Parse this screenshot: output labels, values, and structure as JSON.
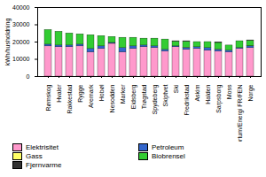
{
  "chart_data": {
    "type": "bar",
    "stacked": true,
    "grid": false,
    "legend": "bottom",
    "y_label": "kWh/husholdning",
    "categories": [
      "Rømskog",
      "Hvaler",
      "Rakkestad",
      "Rygge",
      "Aremark",
      "Hobøl",
      "Nesodden",
      "Marker",
      "Eidsberg",
      "Trøgstad",
      "Spydeberg",
      "Skiptvet",
      "Ski",
      "Fredrikstad",
      "Askim",
      "Halden",
      "Sarpsborg",
      "Moss",
      "Fortum/Energi FR/FEN",
      "Norge"
    ],
    "ylim": [
      0,
      40000
    ],
    "yticks": [
      0,
      10000,
      20000,
      30000,
      40000
    ],
    "series": [
      {
        "name": "Elektrisitet",
        "color": "#ff99cc",
        "values": [
          17500,
          17000,
          17000,
          17500,
          14000,
          16000,
          19000,
          14000,
          16000,
          17000,
          16500,
          14500,
          17000,
          15500,
          16000,
          15000,
          14500,
          14000,
          16000,
          16500
        ]
      },
      {
        "name": "Petroleum",
        "color": "#3366cc",
        "values": [
          1000,
          1000,
          1000,
          1000,
          2000,
          1500,
          500,
          2500,
          1500,
          1000,
          1000,
          1000,
          500,
          1000,
          1000,
          1500,
          1000,
          1000,
          500,
          1000
        ]
      },
      {
        "name": "Gass",
        "color": "#ffff66",
        "values": [
          0,
          0,
          0,
          0,
          0,
          0,
          0,
          0,
          0,
          0,
          0,
          0,
          0,
          200,
          0,
          0,
          200,
          0,
          0,
          100
        ]
      },
      {
        "name": "Biobrensel",
        "color": "#33cc33",
        "values": [
          8500,
          8000,
          7000,
          6000,
          8000,
          6000,
          3500,
          6000,
          5000,
          4000,
          4500,
          6000,
          2800,
          3500,
          3000,
          3500,
          3800,
          3000,
          4000,
          3200
        ]
      },
      {
        "name": "Fjernvarme",
        "color": "#333333",
        "values": [
          0,
          0,
          0,
          0,
          0,
          0,
          0,
          0,
          0,
          0,
          0,
          0,
          200,
          300,
          0,
          0,
          300,
          0,
          0,
          200
        ]
      }
    ]
  }
}
